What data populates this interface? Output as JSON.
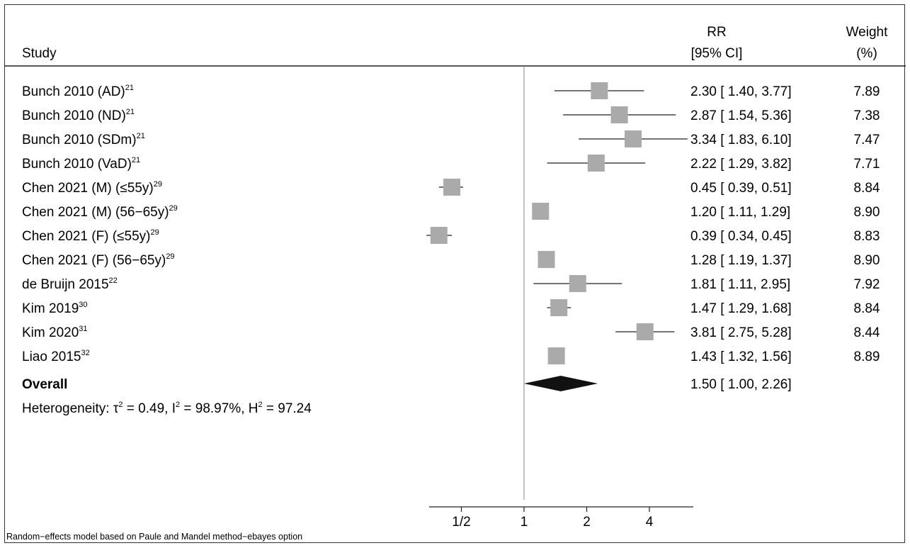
{
  "header": {
    "study": "Study",
    "rr_line1": "RR",
    "rr_line2": "[95% CI]",
    "weight_line1": "Weight",
    "weight_line2": "(%)"
  },
  "footnote": "Random−effects model based on Paule and Mandel method−ebayes option",
  "heterogeneity": {
    "prefix": "Heterogeneity: ",
    "tau_symbol": "τ",
    "tau_sup": "2",
    "tau_text": " = 0.49, I",
    "i_sup": "2",
    "i_text": " = 98.97%, H",
    "h_sup": "2",
    "h_text": " = 97.24"
  },
  "colors": {
    "box": "#aaaaaa",
    "diamond": "#111111",
    "line": "#222222",
    "nullline": "#888888"
  },
  "chart_data": {
    "type": "forest",
    "x_scale": "log2",
    "xlim": [
      0.35,
      6.5
    ],
    "x_ticks": [
      {
        "value": 0.5,
        "label": "1/2"
      },
      {
        "value": 1,
        "label": "1"
      },
      {
        "value": 2,
        "label": "2"
      },
      {
        "value": 4,
        "label": "4"
      }
    ],
    "null_value": 1,
    "studies": [
      {
        "name": "Bunch 2010 (AD)",
        "sup": "21",
        "rr": 2.3,
        "lo": 1.4,
        "hi": 3.77,
        "text": "2.30 [ 1.40,  3.77]",
        "weight": "7.89"
      },
      {
        "name": "Bunch 2010 (ND)",
        "sup": "21",
        "rr": 2.87,
        "lo": 1.54,
        "hi": 5.36,
        "text": "2.87 [ 1.54,  5.36]",
        "weight": "7.38"
      },
      {
        "name": "Bunch 2010 (SDm)",
        "sup": "21",
        "rr": 3.34,
        "lo": 1.83,
        "hi": 6.1,
        "text": "3.34 [ 1.83,  6.10]",
        "weight": "7.47"
      },
      {
        "name": "Bunch 2010 (VaD)",
        "sup": "21",
        "rr": 2.22,
        "lo": 1.29,
        "hi": 3.82,
        "text": "2.22 [ 1.29,  3.82]",
        "weight": "7.71"
      },
      {
        "name": "Chen 2021 (M) (≤55y)",
        "sup": "29",
        "rr": 0.45,
        "lo": 0.39,
        "hi": 0.51,
        "text": "0.45 [ 0.39,  0.51]",
        "weight": "8.84"
      },
      {
        "name": "Chen 2021 (M) (56−65y)",
        "sup": "29",
        "rr": 1.2,
        "lo": 1.11,
        "hi": 1.29,
        "text": "1.20 [ 1.11,  1.29]",
        "weight": "8.90"
      },
      {
        "name": "Chen 2021 (F) (≤55y)",
        "sup": "29",
        "rr": 0.39,
        "lo": 0.34,
        "hi": 0.45,
        "text": "0.39 [ 0.34,  0.45]",
        "weight": "8.83"
      },
      {
        "name": "Chen 2021 (F) (56−65y)",
        "sup": "29",
        "rr": 1.28,
        "lo": 1.19,
        "hi": 1.37,
        "text": "1.28 [ 1.19,  1.37]",
        "weight": "8.90"
      },
      {
        "name": "de Bruijn 2015",
        "sup": "22",
        "rr": 1.81,
        "lo": 1.11,
        "hi": 2.95,
        "text": "1.81 [ 1.11,  2.95]",
        "weight": "7.92"
      },
      {
        "name": "Kim 2019",
        "sup": "30",
        "rr": 1.47,
        "lo": 1.29,
        "hi": 1.68,
        "text": "1.47 [ 1.29,  1.68]",
        "weight": "8.84"
      },
      {
        "name": "Kim 2020",
        "sup": "31",
        "rr": 3.81,
        "lo": 2.75,
        "hi": 5.28,
        "text": "3.81 [ 2.75,  5.28]",
        "weight": "8.44"
      },
      {
        "name": "Liao 2015",
        "sup": "32",
        "rr": 1.43,
        "lo": 1.32,
        "hi": 1.56,
        "text": "1.43 [ 1.32,  1.56]",
        "weight": "8.89"
      }
    ],
    "overall": {
      "name": "Overall",
      "rr": 1.5,
      "lo": 1.0,
      "hi": 2.26,
      "text": "1.50 [ 1.00,  2.26]"
    }
  }
}
